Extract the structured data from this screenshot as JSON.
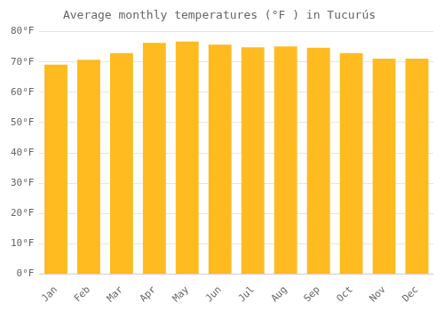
{
  "chart_data": {
    "type": "bar",
    "title": "Average monthly temperatures (°F ) in Tucurús",
    "categories": [
      "Jan",
      "Feb",
      "Mar",
      "Apr",
      "May",
      "Jun",
      "Jul",
      "Aug",
      "Sep",
      "Oct",
      "Nov",
      "Dec"
    ],
    "values": [
      69.1,
      70.7,
      72.9,
      76.3,
      76.7,
      75.7,
      74.8,
      75.1,
      74.7,
      72.9,
      71.1,
      71.1
    ],
    "color": "#FFBB20",
    "ylim": [
      0,
      80
    ],
    "yticks": [
      {
        "value": 0,
        "label": "0°F"
      },
      {
        "value": 10,
        "label": "10°F"
      },
      {
        "value": 20,
        "label": "20°F"
      },
      {
        "value": 30,
        "label": "30°F"
      },
      {
        "value": 40,
        "label": "40°F"
      },
      {
        "value": 50,
        "label": "50°F"
      },
      {
        "value": 60,
        "label": "60°F"
      },
      {
        "value": 70,
        "label": "70°F"
      },
      {
        "value": 80,
        "label": "80°F"
      }
    ],
    "grid": true
  }
}
